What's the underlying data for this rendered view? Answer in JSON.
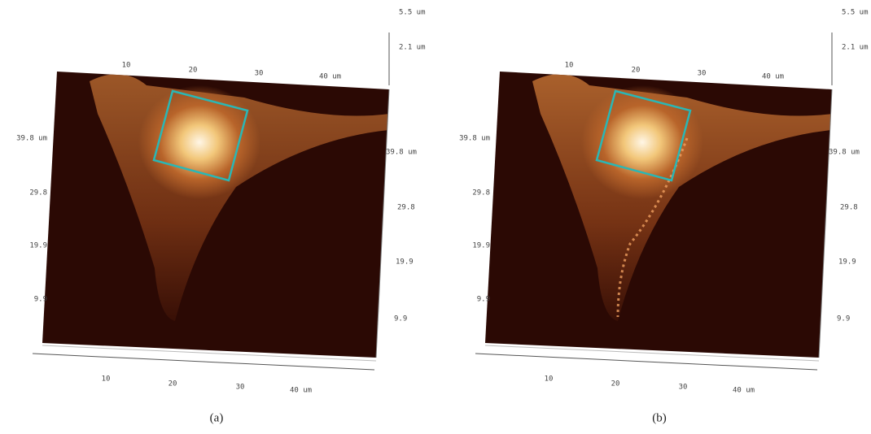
{
  "panels": [
    {
      "caption": "(a)",
      "z_labels": [
        "5.5 um",
        "2.1 um"
      ],
      "top_axis": [
        "10",
        "20",
        "30",
        "40 um"
      ],
      "left_axis": [
        "39.8 um",
        "29.8",
        "19.9",
        "9.9"
      ],
      "right_axis": [
        "39.8 um",
        "29.8",
        "19.9",
        "9.9"
      ],
      "bottom_axis": [
        "10",
        "20",
        "30",
        "40 um"
      ]
    },
    {
      "caption": "(b)",
      "z_labels": [
        "5.5 um",
        "2.1 um"
      ],
      "top_axis": [
        "10",
        "20",
        "30",
        "40 um"
      ],
      "left_axis": [
        "39.8 um",
        "29.8",
        "19.9",
        "9.9"
      ],
      "right_axis": [
        "39.8 um",
        "29.8",
        "19.9",
        "9.9"
      ],
      "bottom_axis": [
        "10",
        "20",
        "30",
        "40 um"
      ]
    }
  ]
}
